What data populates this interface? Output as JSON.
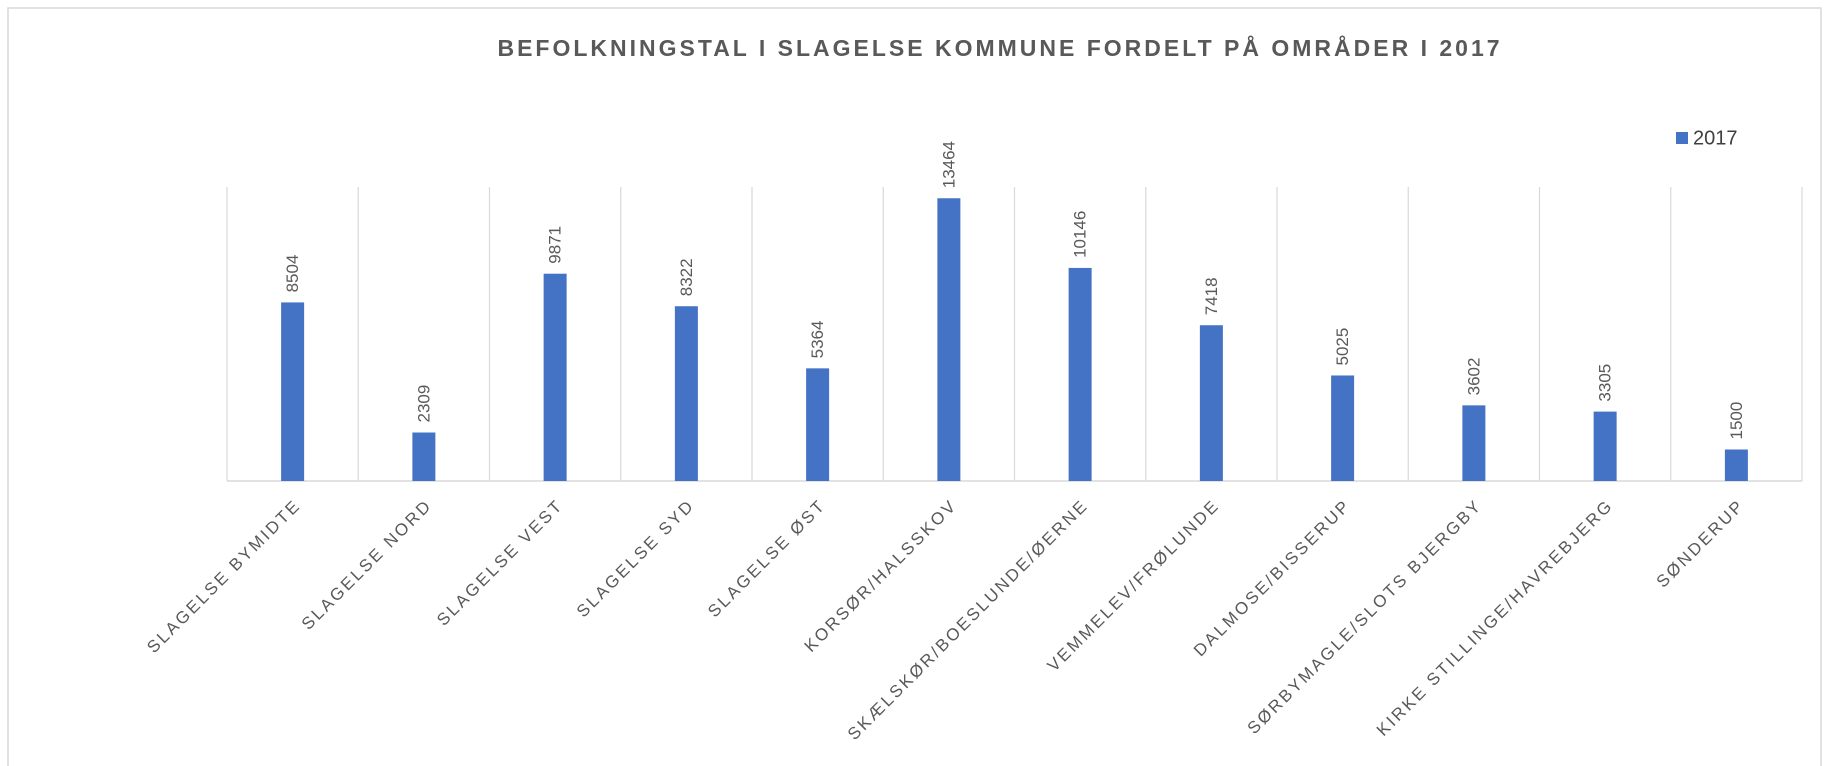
{
  "chart_data": {
    "type": "bar",
    "title": "BEFOLKNINGSTAL I SLAGELSE KOMMUNE FORDELT PÅ OMRÅDER I 2017",
    "categories": [
      "SLAGELSE BYMIDTE",
      "SLAGELSE NORD",
      "SLAGELSE VEST",
      "SLAGELSE SYD",
      "SLAGELSE ØST",
      "KORSØR/HALSSKOV",
      "SKÆLSKØR/BOESLUNDE/ØERNE",
      "VEMMELEV/FRØLUNDE",
      "DALMOSE/BISSERUP",
      "SØRBYMAGLE/SLOTS BJERGBY",
      "KIRKE STILLINGE/HAVREBJERG",
      "SØNDERUP"
    ],
    "series": [
      {
        "name": "2017",
        "color": "#4472c4",
        "values": [
          8504,
          2309,
          9871,
          8322,
          5364,
          13464,
          10146,
          7418,
          5025,
          3602,
          3305,
          1500
        ]
      }
    ],
    "ylim": [
      0,
      14000
    ],
    "legend": "top-right"
  }
}
